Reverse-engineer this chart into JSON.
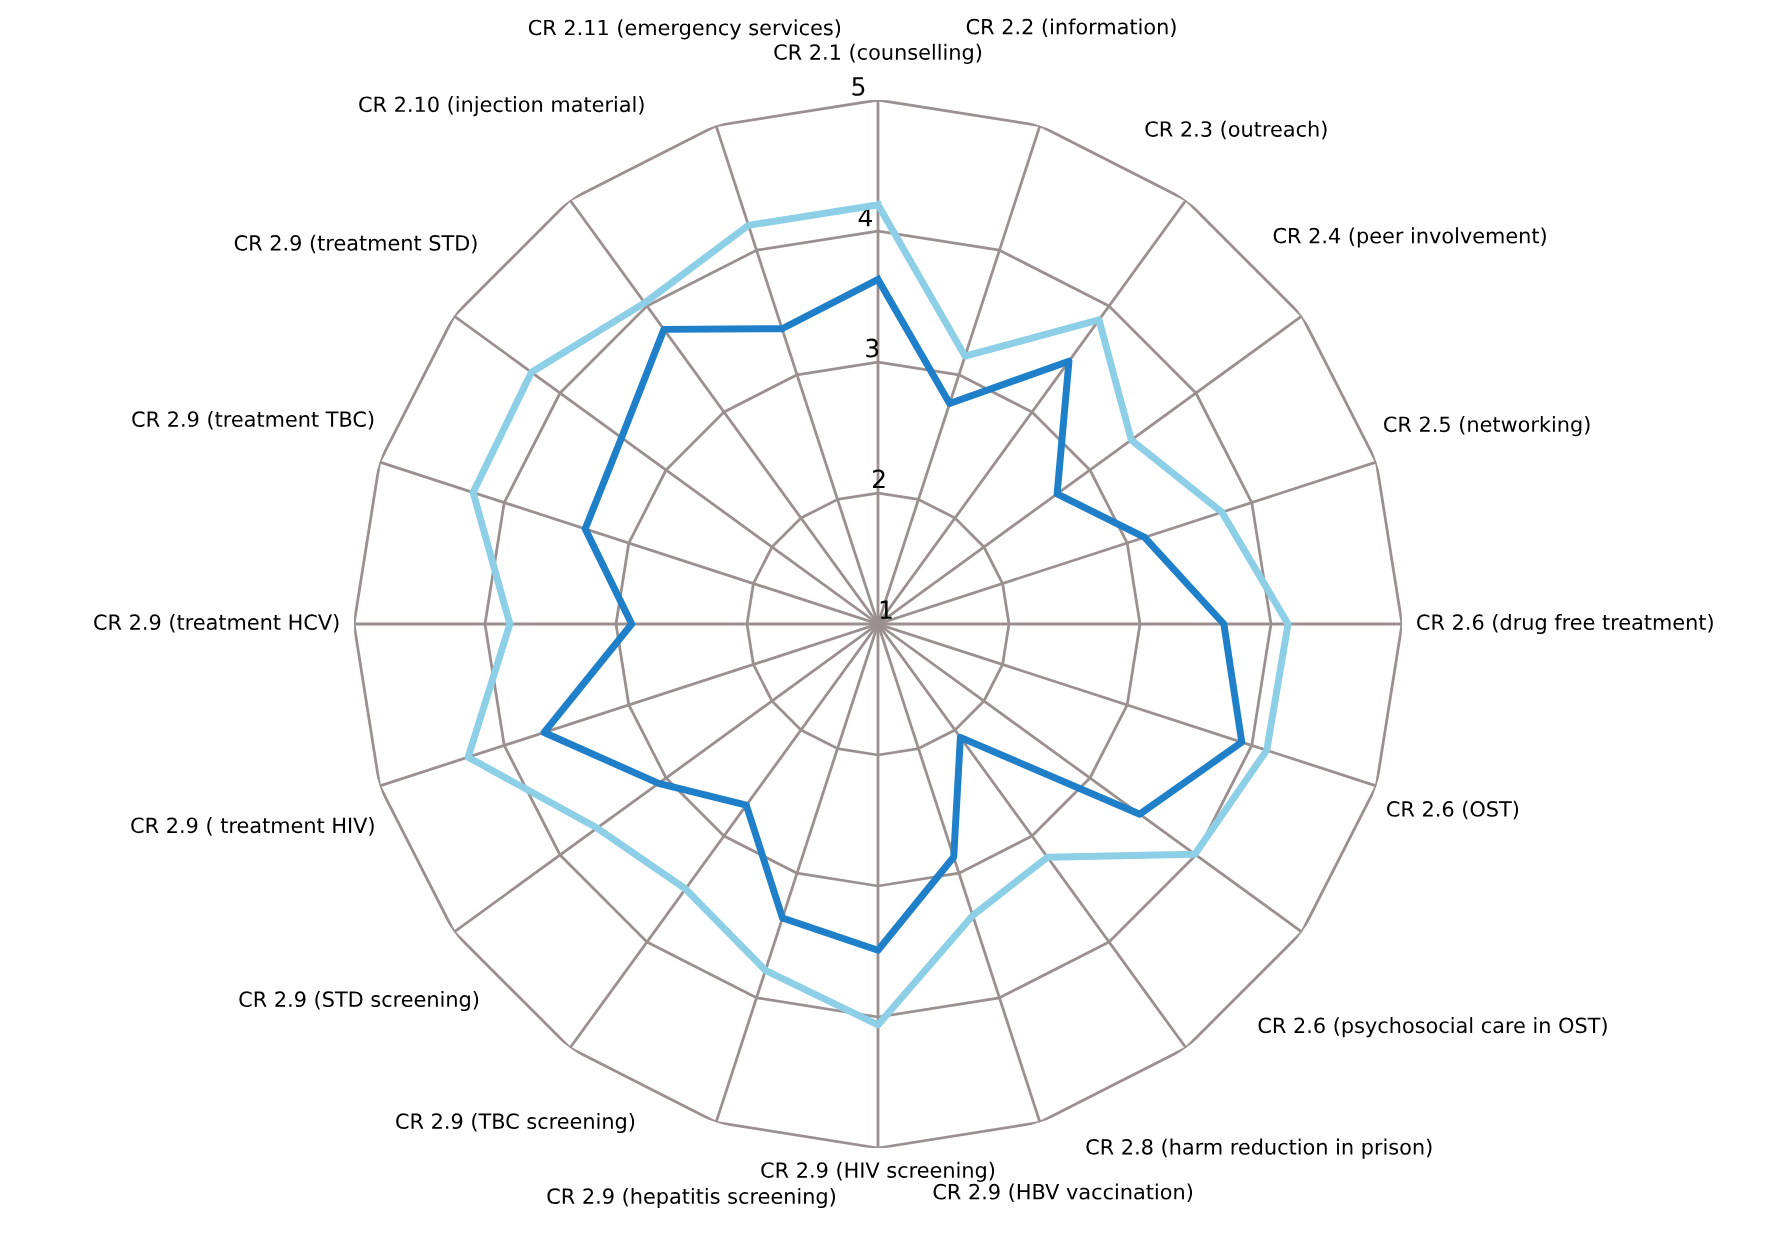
{
  "chart_data": {
    "type": "radar",
    "categories": [
      "CR 2.1 (counselling)",
      "CR 2.2 (information)",
      "CR 2.3 (outreach)",
      "CR 2.4 (peer involvement)",
      "CR 2.5 (networking)",
      "CR 2.6 (drug free treatment)",
      "CR 2.6 (OST)",
      "CR 2.6 (psychosocial care in OST)",
      "CR 2.8 (harm reduction in prison)",
      "CR 2.9 (HBV vaccination)",
      "CR 2.9 (HIV screening)",
      "CR 2.9 (hepatitis screening)",
      "CR 2.9 (TBC screening)",
      "CR 2.9 (STD screening)",
      "CR 2.9 ( treatment HIV)",
      "CR 2.9 (treatment HCV)",
      "CR 2.9 (treatment TBC)",
      "CR 2.9 (treatment STD)",
      "CR 2.10 (injection material)",
      "CR 2.11 (emergency services)"
    ],
    "series": [
      {
        "color": "#8ccfe6",
        "values": [
          4.2,
          3.15,
          3.87,
          3.39,
          3.76,
          4.13,
          4.12,
          3.99,
          3.2,
          3.34,
          4.06,
          3.78,
          3.5,
          3.65,
          4.29,
          3.81,
          4.25,
          4.27,
          4.03,
          4.2
        ]
      },
      {
        "color": "#1f7fc8",
        "values": [
          3.63,
          2.77,
          3.48,
          2.69,
          3.14,
          3.64,
          3.92,
          3.47,
          2.07,
          2.87,
          3.49,
          3.36,
          2.71,
          3.07,
          3.68,
          2.88,
          3.35,
          3.42,
          3.78,
          3.37
        ]
      }
    ],
    "ylim": [
      1,
      5
    ],
    "yticks": [
      1,
      2,
      3,
      4,
      5
    ],
    "grid": true
  }
}
